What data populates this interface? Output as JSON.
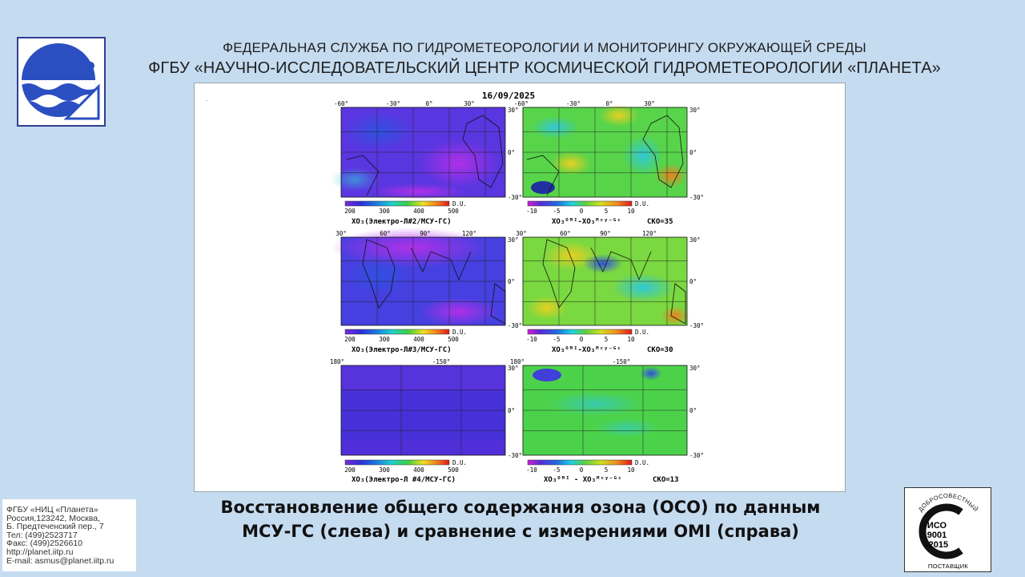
{
  "header": {
    "line1": "ФЕДЕРАЛЬНАЯ СЛУЖБА ПО ГИДРОМЕТЕОРОЛОГИИ И МОНИТОРИНГУ ОКРУЖАЮЩЕЙ СРЕДЫ",
    "line2": "ФГБУ «НАУЧНО-ИССЛЕДОВАТЕЛЬСКИЙ ЦЕНТР КОСМИЧЕСКОЙ ГИДРОМЕТЕОРОЛОГИИ «ПЛАНЕТА»"
  },
  "logo": {
    "icon": "planeta-logo-icon",
    "color": "#2b4fc0"
  },
  "figure": {
    "date": "16/09/2025",
    "rows": [
      {
        "top_ticks": [
          "-60°",
          "-30°",
          "0°",
          "30°"
        ],
        "lat_ticks": [
          "30°",
          "0°",
          "-30°"
        ],
        "left_label": "XO₃(Электро-Л#2/МСУ-ГС)",
        "right_label": "XO₃ᴼᴹᴵ-XO₃ᴹᶜʸ⁻ᴳᶜ",
        "sko": "СКО=35"
      },
      {
        "top_ticks": [
          "30°",
          "60°",
          "90°",
          "120°"
        ],
        "lat_ticks": [
          "30°",
          "0°",
          "-30°"
        ],
        "left_label": "XO₃(Электро-Л#3/МСУ-ГС)",
        "right_label": "XO₃ᴼᴹᴵ-XO₃ᴹᶜʸ⁻ᴳᶜ",
        "sko": "СКО=30"
      },
      {
        "top_ticks": [
          "180°",
          "-150°"
        ],
        "lat_ticks": [
          "30°",
          "0°",
          "-30°"
        ],
        "left_label": "XO₃(Электро-Л #4/МСУ-ГС)",
        "right_label": "XO₃ᴼᴹᴵ - XO₃ᴹᶜʸ⁻ᴳᶜ",
        "sko": "СКО=13"
      }
    ],
    "left_scale": {
      "ticks": [
        "200",
        "300",
        "400",
        "500"
      ],
      "unit": "D.U."
    },
    "right_scale": {
      "ticks": [
        "-10",
        "-5",
        "0",
        "5",
        "10"
      ],
      "unit": "D.U."
    }
  },
  "contact": {
    "lines": [
      "ФГБУ «НИЦ «Планета»",
      "Россия,123242, Москва,",
      "Б. Предтеченский пер., 7",
      "Тел:   (499)2523717",
      "Факс: (499)2526610",
      "http://planet.iitp.ru",
      "E-mail: asmus@planet.iitp.ru"
    ]
  },
  "caption": {
    "line1": "Восстановление общего содержания озона (ОСО) по данным",
    "line2": "МСУ-ГС (слева) и сравнение с измерениями OMI (справа)"
  },
  "iso_badge": {
    "top_text": "ДОБРОСОВЕСТНЫЙ",
    "code1": "ИСО",
    "code2": "9001",
    "code3": "-2015",
    "bottom_text": "ПОСТАВЩИК"
  }
}
